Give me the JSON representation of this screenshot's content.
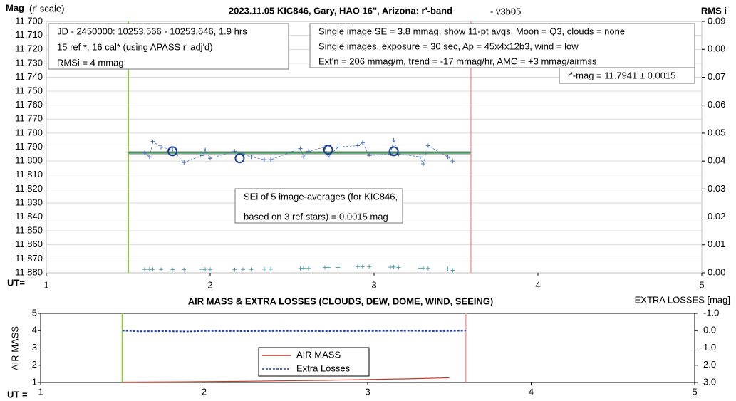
{
  "chart_data": [
    {
      "type": "line",
      "title": "2023.11.05 KIC846, Gary, HAO 16\", Arizona: r'-band",
      "subtitle": "- v3b05",
      "ylabel": "Mag",
      "ylabel_note": "(r' scale)",
      "y2label": "RMS i",
      "xlabel": "UT=",
      "xlim": [
        1,
        5
      ],
      "xticks": [
        1,
        2,
        3,
        4,
        5
      ],
      "ylim": [
        11.88,
        11.7
      ],
      "yticks": [
        {
          "value": 11.7,
          "label": "11.700"
        },
        {
          "value": 11.71,
          "label": "11.710"
        },
        {
          "value": 11.72,
          "label": "11.720"
        },
        {
          "value": 11.73,
          "label": "11.730"
        },
        {
          "value": 11.74,
          "label": "11.740"
        },
        {
          "value": 11.75,
          "label": "11.750"
        },
        {
          "value": 11.76,
          "label": "11.760"
        },
        {
          "value": 11.77,
          "label": "11.770"
        },
        {
          "value": 11.78,
          "label": "11.780"
        },
        {
          "value": 11.79,
          "label": "11.790"
        },
        {
          "value": 11.8,
          "label": "11.800"
        },
        {
          "value": 11.81,
          "label": "11.810"
        },
        {
          "value": 11.82,
          "label": "11.820"
        },
        {
          "value": 11.83,
          "label": "11.830"
        },
        {
          "value": 11.84,
          "label": "11.840"
        },
        {
          "value": 11.85,
          "label": "11.850"
        },
        {
          "value": 11.86,
          "label": "11.860"
        },
        {
          "value": 11.87,
          "label": "11.870"
        },
        {
          "value": 11.88,
          "label": "11.880"
        }
      ],
      "y2lim": [
        0,
        0.09
      ],
      "y2ticks": [
        {
          "value": 0,
          "label": "0.00"
        },
        {
          "value": 0.01,
          "label": "0.01"
        },
        {
          "value": 0.02,
          "label": "0.02"
        },
        {
          "value": 0.03,
          "label": "0.03"
        },
        {
          "value": 0.04,
          "label": "0.04"
        },
        {
          "value": 0.05,
          "label": "0.05"
        },
        {
          "value": 0.06,
          "label": "0.06"
        },
        {
          "value": 0.07,
          "label": "0.07"
        },
        {
          "value": 0.08,
          "label": "0.08"
        },
        {
          "value": 0.09,
          "label": "0.09"
        }
      ],
      "grid": true,
      "ut_start": 1.5,
      "ut_end": 3.59,
      "fit_mag": 11.7941,
      "series": [
        {
          "color": "#4a6fb5",
          "x": [
            1.6,
            1.63,
            1.65,
            1.7,
            1.77,
            1.84,
            1.95,
            1.97,
            2.0,
            2.15,
            2.2,
            2.25,
            2.33,
            2.37,
            2.55,
            2.57,
            2.6,
            2.7,
            2.72,
            2.78,
            2.9,
            2.93,
            2.97,
            3.1,
            3.12,
            3.15,
            3.28,
            3.3,
            3.33,
            3.45,
            3.48
          ],
          "values": [
            11.794,
            11.797,
            11.786,
            11.79,
            11.792,
            11.801,
            11.796,
            11.792,
            11.798,
            11.793,
            11.795,
            11.797,
            11.799,
            11.799,
            11.791,
            11.797,
            11.793,
            11.79,
            11.797,
            11.79,
            11.789,
            11.787,
            11.796,
            11.795,
            11.785,
            11.795,
            11.797,
            11.802,
            11.789,
            11.797,
            11.8
          ]
        },
        {
          "color": "#1f3f8f",
          "x": [
            1.77,
            2.18,
            2.72,
            3.12
          ],
          "values": [
            11.793,
            11.798,
            11.792,
            11.793
          ]
        },
        {
          "color": "#5aa0b0",
          "axis": "y2",
          "x": [
            1.6,
            1.63,
            1.65,
            1.7,
            1.77,
            1.84,
            1.95,
            1.97,
            2.0,
            2.15,
            2.2,
            2.25,
            2.33,
            2.37,
            2.55,
            2.57,
            2.6,
            2.7,
            2.72,
            2.78,
            2.9,
            2.93,
            2.97,
            3.1,
            3.12,
            3.15,
            3.28,
            3.3,
            3.33,
            3.45,
            3.48
          ],
          "values": [
            0.0012,
            0.0012,
            0.0012,
            0.0012,
            0.0011,
            0.0011,
            0.0012,
            0.0012,
            0.0012,
            0.0011,
            0.0012,
            0.0012,
            0.0013,
            0.0013,
            0.0016,
            0.0017,
            0.0016,
            0.0019,
            0.0019,
            0.0019,
            0.0022,
            0.0022,
            0.0022,
            0.002,
            0.0021,
            0.0019,
            0.0017,
            0.0017,
            0.0016,
            0.0014,
            0.0009
          ]
        }
      ],
      "annotations": [
        [
          "JD - 2450000: 10253.566 - 10253.646, 1.9 hrs",
          "15 ref *, 16 cal* (using APASS r' adj'd)",
          "RMSi = 4 mmag"
        ],
        [
          "Single image SE = 3.8 mmag, show  11-pt avgs, Moon = Q3, clouds = none",
          "Single images, exposure = 30 sec, Ap = 45x4x12b3, wind = low",
          "Ext'n = 206 mmag/m, trend = -17  mmag/hr, AMC = +3 mmag/airmss"
        ],
        [
          "r'-mag = 11.7941 ± 0.0015"
        ],
        [
          "SEi of 5 image-averages (for KIC846,",
          "based on 3 ref stars) = 0.0015 mag"
        ]
      ]
    },
    {
      "type": "line",
      "title": "AIR MASS & EXTRA LOSSES (CLOUDS, DEW, DOME, WIND, SEEING)",
      "ylabel": "AIR MASS",
      "y2label": "EXTRA LOSSES [mag]",
      "xlabel": "UT =",
      "xlim": [
        1,
        5
      ],
      "xticks": [
        1,
        2,
        3,
        4,
        5
      ],
      "ylim": [
        1,
        5
      ],
      "yticks": [
        1,
        2,
        3,
        4,
        5
      ],
      "y2lim": [
        3,
        -1
      ],
      "y2ticks": [
        {
          "value": -1,
          "label": "-1.0"
        },
        {
          "value": 0,
          "label": "0.0"
        },
        {
          "value": 1,
          "label": "1.0"
        },
        {
          "value": 2,
          "label": "2.0"
        },
        {
          "value": 3,
          "label": "3.0"
        }
      ],
      "ut_start": 1.5,
      "ut_end": 3.6,
      "series": [
        {
          "name": "AIR MASS",
          "color": "#c0392b",
          "x": [
            1.5,
            1.75,
            2.0,
            2.25,
            2.5,
            2.75,
            3.0,
            3.25,
            3.5
          ],
          "values": [
            1.02,
            1.03,
            1.05,
            1.07,
            1.1,
            1.13,
            1.17,
            1.21,
            1.27
          ]
        },
        {
          "name": "Extra Losses",
          "color": "#1f3fa8",
          "axis": "y2",
          "x": [
            1.5,
            1.6,
            1.75,
            1.9,
            2.0,
            2.25,
            2.5,
            2.75,
            3.0,
            3.25,
            3.4,
            3.5,
            3.6
          ],
          "values": [
            0,
            0.04,
            0.03,
            0.05,
            0.02,
            0.03,
            0.02,
            0.03,
            0.02,
            0.01,
            0.03,
            0.02,
            0
          ]
        }
      ]
    }
  ]
}
